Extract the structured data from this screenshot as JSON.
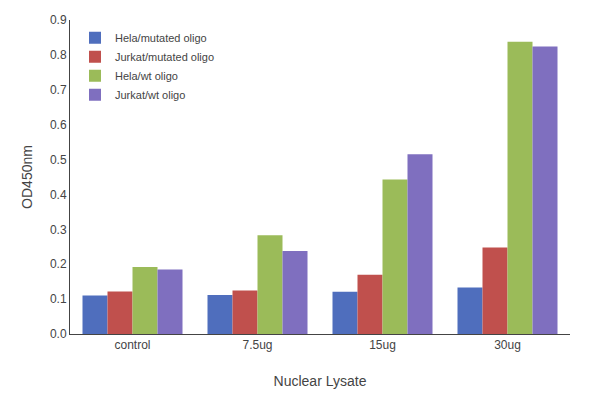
{
  "chart_data": {
    "type": "bar",
    "categories": [
      "control",
      "7.5ug",
      "15ug",
      "30ug"
    ],
    "series": [
      {
        "name": "Hela/mutated oligo",
        "color": "#4F6EBD",
        "values": [
          0.11,
          0.112,
          0.121,
          0.133
        ]
      },
      {
        "name": "Jurkat/mutated oligo",
        "color": "#C0504D",
        "values": [
          0.122,
          0.125,
          0.17,
          0.248
        ]
      },
      {
        "name": "Hela/wt oligo",
        "color": "#9BBB59",
        "values": [
          0.192,
          0.283,
          0.443,
          0.838
        ]
      },
      {
        "name": "Jurkat/wt oligo",
        "color": "#7F6FBF",
        "values": [
          0.185,
          0.238,
          0.515,
          0.824
        ]
      }
    ],
    "xlabel": "Nuclear Lysate",
    "ylabel": "OD450nm",
    "ylim": [
      0,
      0.9
    ],
    "yticks": [
      {
        "value": 0,
        "label": "0.0"
      },
      0.1,
      0.2,
      0.3,
      0.4,
      0.5,
      0.6,
      0.7,
      0.8,
      0.9
    ],
    "grid": false,
    "legend": "upper left"
  }
}
